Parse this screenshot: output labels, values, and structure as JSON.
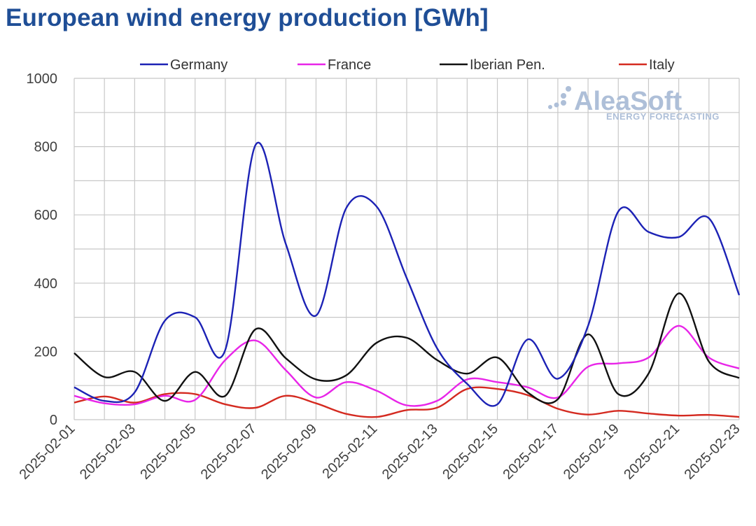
{
  "chart_data": {
    "type": "line",
    "title": "European wind energy production [GWh]",
    "ylim": [
      0,
      1000
    ],
    "y_ticks": [
      0,
      200,
      400,
      600,
      800,
      1000
    ],
    "grid": true,
    "legend_position": "top",
    "x": [
      "2025-02-01",
      "2025-02-02",
      "2025-02-03",
      "2025-02-04",
      "2025-02-05",
      "2025-02-06",
      "2025-02-07",
      "2025-02-08",
      "2025-02-09",
      "2025-02-10",
      "2025-02-11",
      "2025-02-12",
      "2025-02-13",
      "2025-02-14",
      "2025-02-15",
      "2025-02-16",
      "2025-02-17",
      "2025-02-18",
      "2025-02-19",
      "2025-02-20",
      "2025-02-21",
      "2025-02-22",
      "2025-02-23"
    ],
    "x_tick_labels": [
      "2025-02-01",
      "2025-02-03",
      "2025-02-05",
      "2025-02-07",
      "2025-02-09",
      "2025-02-11",
      "2025-02-13",
      "2025-02-15",
      "2025-02-17",
      "2025-02-19",
      "2025-02-21",
      "2025-02-23"
    ],
    "series": [
      {
        "name": "Germany",
        "color": "#1c22b5",
        "values": [
          95,
          55,
          80,
          290,
          300,
          205,
          805,
          515,
          305,
          620,
          625,
          415,
          210,
          105,
          45,
          235,
          120,
          275,
          610,
          550,
          535,
          590,
          365
        ]
      },
      {
        "name": "France",
        "color": "#e825e8",
        "values": [
          70,
          48,
          45,
          70,
          58,
          175,
          232,
          145,
          65,
          110,
          85,
          42,
          55,
          118,
          110,
          95,
          65,
          155,
          165,
          182,
          275,
          182,
          150
        ]
      },
      {
        "name": "Iberian Pen.",
        "color": "#111111",
        "values": [
          195,
          125,
          140,
          55,
          140,
          70,
          265,
          180,
          118,
          130,
          225,
          240,
          175,
          135,
          182,
          80,
          60,
          250,
          75,
          135,
          370,
          170,
          122
        ]
      },
      {
        "name": "Italy",
        "color": "#d42a20",
        "values": [
          50,
          68,
          50,
          75,
          75,
          45,
          35,
          70,
          48,
          17,
          8,
          28,
          35,
          90,
          90,
          72,
          32,
          15,
          26,
          18,
          12,
          14,
          8
        ]
      }
    ]
  },
  "watermark": {
    "brand": "AleaSoft",
    "tagline": "ENERGY FORECASTING"
  }
}
